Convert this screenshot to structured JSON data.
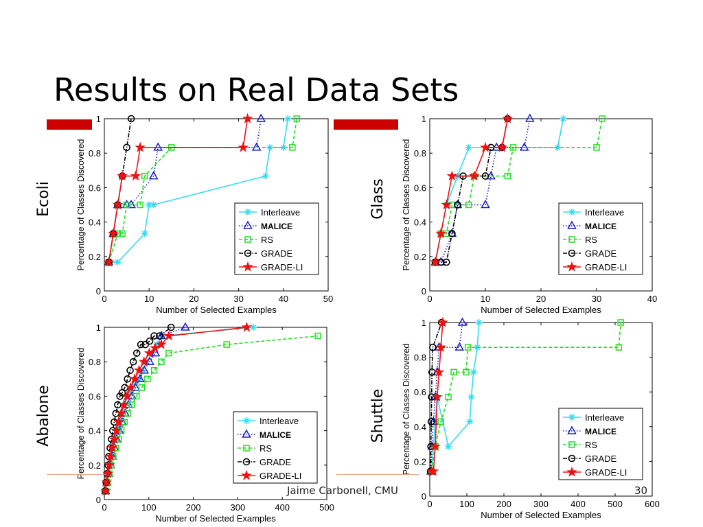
{
  "slide": {
    "title": "Results on Real Data Sets",
    "footer_author": "Jaime Carbonell, CMU",
    "page_number": "30",
    "accent_color": "#cc0000",
    "rule_color": "#e9a898"
  },
  "chart_data": [
    {
      "id": "ecoli",
      "type": "line",
      "dataset_label": "Ecoli",
      "xlabel": "Number of Selected Examples",
      "ylabel": "Percentage of Classes Discovered",
      "xlim": [
        0,
        50
      ],
      "ylim": [
        0,
        1
      ],
      "xticks": [
        0,
        10,
        20,
        30,
        40,
        50
      ],
      "yticks": [
        0,
        0.2,
        0.4,
        0.6,
        0.8,
        1
      ],
      "grid": false,
      "legend_position": "lower-right",
      "series": [
        {
          "name": "Interleave",
          "color": "#33ddee",
          "dash": "solid",
          "marker": "asterisk",
          "x": [
            1,
            3,
            9,
            10,
            11,
            36,
            37,
            40,
            41
          ],
          "y": [
            0.167,
            0.167,
            0.333,
            0.5,
            0.5,
            0.667,
            0.833,
            0.833,
            1.0
          ]
        },
        {
          "name": "MALICE",
          "color": "#1a1acc",
          "dash": "dotted",
          "marker": "triangle",
          "x": [
            1,
            2,
            3,
            5,
            6,
            11,
            12,
            34,
            35
          ],
          "y": [
            0.167,
            0.333,
            0.5,
            0.5,
            0.5,
            0.667,
            0.833,
            0.833,
            1.0
          ]
        },
        {
          "name": "RS",
          "color": "#22dd22",
          "dash": "dashed",
          "marker": "square",
          "x": [
            1,
            3,
            4,
            5,
            8,
            9,
            15,
            42,
            43
          ],
          "y": [
            0.167,
            0.333,
            0.333,
            0.5,
            0.5,
            0.667,
            0.833,
            0.833,
            1.0
          ]
        },
        {
          "name": "GRADE",
          "color": "#000000",
          "dash": "dashdot",
          "marker": "circle",
          "x": [
            1,
            2,
            3,
            4,
            5,
            6
          ],
          "y": [
            0.167,
            0.333,
            0.5,
            0.667,
            0.833,
            1.0
          ]
        },
        {
          "name": "GRADE-LI",
          "color": "#ee1111",
          "dash": "solid",
          "marker": "star",
          "x": [
            1,
            2,
            3,
            4,
            7,
            8,
            31,
            32
          ],
          "y": [
            0.167,
            0.333,
            0.5,
            0.667,
            0.667,
            0.833,
            0.833,
            1.0
          ]
        }
      ]
    },
    {
      "id": "glass",
      "type": "line",
      "dataset_label": "Glass",
      "xlabel": "Number of Selected Examples",
      "ylabel": "Percentage of Classes Discovered",
      "xlim": [
        0,
        40
      ],
      "ylim": [
        0,
        1
      ],
      "xticks": [
        0,
        10,
        20,
        30,
        40
      ],
      "yticks": [
        0,
        0.2,
        0.4,
        0.6,
        0.8,
        1
      ],
      "grid": false,
      "legend_position": "lower-right",
      "series": [
        {
          "name": "Interleave",
          "color": "#33ddee",
          "dash": "solid",
          "marker": "asterisk",
          "x": [
            1,
            2,
            3,
            5,
            7,
            23,
            24
          ],
          "y": [
            0.167,
            0.333,
            0.5,
            0.667,
            0.833,
            0.833,
            1.0
          ]
        },
        {
          "name": "MALICE",
          "color": "#1a1acc",
          "dash": "dotted",
          "marker": "triangle",
          "x": [
            1,
            2,
            4,
            5,
            10,
            11,
            12,
            17,
            18
          ],
          "y": [
            0.167,
            0.167,
            0.333,
            0.5,
            0.5,
            0.667,
            0.833,
            0.833,
            1.0
          ]
        },
        {
          "name": "RS",
          "color": "#22dd22",
          "dash": "dashed",
          "marker": "square",
          "x": [
            1,
            2,
            3,
            4,
            7,
            8,
            14,
            15,
            30,
            31
          ],
          "y": [
            0.167,
            0.333,
            0.333,
            0.5,
            0.5,
            0.667,
            0.667,
            0.833,
            0.833,
            1.0
          ]
        },
        {
          "name": "GRADE",
          "color": "#000000",
          "dash": "dashdot",
          "marker": "circle",
          "x": [
            1,
            2,
            3,
            4,
            5,
            6,
            10,
            11,
            13,
            14
          ],
          "y": [
            0.167,
            0.167,
            0.167,
            0.333,
            0.5,
            0.667,
            0.667,
            0.833,
            0.833,
            1.0
          ]
        },
        {
          "name": "GRADE-LI",
          "color": "#ee1111",
          "dash": "solid",
          "marker": "star",
          "x": [
            1,
            2,
            3,
            4,
            8,
            10,
            13,
            14
          ],
          "y": [
            0.167,
            0.333,
            0.5,
            0.667,
            0.667,
            0.833,
            0.833,
            1.0
          ]
        }
      ]
    },
    {
      "id": "abalone",
      "type": "line",
      "dataset_label": "Abalone",
      "xlabel": "Number of Selected Examples",
      "ylabel": "Percentage of Classes Discovered",
      "xlim": [
        0,
        500
      ],
      "ylim": [
        0,
        1
      ],
      "xticks": [
        0,
        100,
        200,
        300,
        400,
        500
      ],
      "yticks": [
        0,
        0.2,
        0.4,
        0.6,
        0.8,
        1
      ],
      "grid": false,
      "legend_position": "lower-right",
      "series": [
        {
          "name": "Interleave",
          "color": "#33ddee",
          "dash": "solid",
          "marker": "asterisk",
          "x": [
            3,
            6,
            9,
            12,
            16,
            20,
            25,
            30,
            35,
            40,
            46,
            52,
            58,
            64,
            70,
            78,
            86,
            96,
            106,
            118,
            130,
            335
          ],
          "y": [
            0.05,
            0.1,
            0.15,
            0.2,
            0.25,
            0.3,
            0.35,
            0.4,
            0.45,
            0.5,
            0.55,
            0.6,
            0.62,
            0.65,
            0.68,
            0.7,
            0.75,
            0.8,
            0.85,
            0.9,
            0.95,
            1.0
          ]
        },
        {
          "name": "MALICE",
          "color": "#1a1acc",
          "dash": "dotted",
          "marker": "triangle",
          "x": [
            3,
            6,
            10,
            14,
            18,
            23,
            28,
            34,
            40,
            47,
            54,
            62,
            70,
            80,
            90,
            102,
            115,
            128,
            182
          ],
          "y": [
            0.05,
            0.1,
            0.15,
            0.2,
            0.25,
            0.3,
            0.35,
            0.4,
            0.45,
            0.5,
            0.55,
            0.6,
            0.65,
            0.7,
            0.75,
            0.8,
            0.85,
            0.95,
            1.0
          ]
        },
        {
          "name": "RS",
          "color": "#22dd22",
          "dash": "dashed",
          "marker": "square",
          "x": [
            3,
            7,
            11,
            15,
            20,
            26,
            32,
            38,
            45,
            53,
            62,
            72,
            84,
            97,
            112,
            128,
            145,
            275,
            480
          ],
          "y": [
            0.05,
            0.1,
            0.15,
            0.2,
            0.25,
            0.3,
            0.35,
            0.4,
            0.45,
            0.5,
            0.55,
            0.6,
            0.65,
            0.7,
            0.75,
            0.8,
            0.85,
            0.9,
            0.95
          ]
        },
        {
          "name": "GRADE",
          "color": "#000000",
          "dash": "dashdot",
          "marker": "circle",
          "x": [
            2,
            4,
            6,
            8,
            10,
            13,
            16,
            19,
            22,
            26,
            30,
            35,
            40,
            46,
            52,
            58,
            65,
            73,
            82,
            92,
            102,
            112,
            124,
            150
          ],
          "y": [
            0.05,
            0.1,
            0.15,
            0.2,
            0.25,
            0.3,
            0.35,
            0.4,
            0.45,
            0.5,
            0.55,
            0.6,
            0.62,
            0.65,
            0.7,
            0.75,
            0.8,
            0.85,
            0.9,
            0.9,
            0.92,
            0.95,
            0.95,
            1.0
          ]
        },
        {
          "name": "GRADE-LI",
          "color": "#ee1111",
          "dash": "solid",
          "marker": "star",
          "x": [
            3,
            5,
            8,
            11,
            14,
            18,
            22,
            27,
            32,
            38,
            44,
            51,
            59,
            68,
            78,
            89,
            101,
            114,
            128,
            145,
            320
          ],
          "y": [
            0.05,
            0.1,
            0.15,
            0.2,
            0.25,
            0.3,
            0.35,
            0.4,
            0.45,
            0.5,
            0.55,
            0.6,
            0.65,
            0.7,
            0.75,
            0.8,
            0.85,
            0.88,
            0.9,
            0.95,
            1.0
          ]
        }
      ]
    },
    {
      "id": "shuttle",
      "type": "line",
      "dataset_label": "Shuttle",
      "xlabel": "Number of Selected Examples",
      "ylabel": "Percentage of Classes Discovered",
      "xlim": [
        0,
        600
      ],
      "ylim": [
        0,
        1
      ],
      "xticks": [
        0,
        100,
        200,
        300,
        400,
        500,
        600
      ],
      "yticks": [
        0,
        0.2,
        0.4,
        0.6,
        0.8,
        1
      ],
      "grid": false,
      "legend_position": "lower-right",
      "series": [
        {
          "name": "Interleave",
          "color": "#33ddee",
          "dash": "solid",
          "marker": "asterisk",
          "x": [
            5,
            10,
            15,
            20,
            50,
            108,
            112,
            118,
            128,
            133
          ],
          "y": [
            0.143,
            0.286,
            0.429,
            0.571,
            0.286,
            0.429,
            0.571,
            0.714,
            0.857,
            1.0
          ]
        },
        {
          "name": "MALICE",
          "color": "#1a1acc",
          "dash": "dotted",
          "marker": "triangle",
          "x": [
            3,
            6,
            10,
            15,
            20,
            25,
            80,
            88
          ],
          "y": [
            0.143,
            0.286,
            0.429,
            0.571,
            0.714,
            0.857,
            0.857,
            1.0
          ]
        },
        {
          "name": "RS",
          "color": "#22dd22",
          "dash": "dashed",
          "marker": "square",
          "x": [
            5,
            15,
            30,
            50,
            65,
            98,
            103,
            510,
            515
          ],
          "y": [
            0.143,
            0.286,
            0.429,
            0.571,
            0.714,
            0.714,
            0.857,
            0.857,
            1.0
          ]
        },
        {
          "name": "GRADE",
          "color": "#000000",
          "dash": "dashdot",
          "marker": "circle",
          "x": [
            2,
            3,
            4,
            5,
            6,
            8,
            32
          ],
          "y": [
            0.143,
            0.286,
            0.429,
            0.571,
            0.714,
            0.857,
            1.0
          ]
        },
        {
          "name": "GRADE-LI",
          "color": "#ee1111",
          "dash": "solid",
          "marker": "star",
          "x": [
            5,
            10,
            15,
            20,
            25,
            30,
            35
          ],
          "y": [
            0.143,
            0.143,
            0.286,
            0.571,
            0.714,
            0.857,
            1.0
          ]
        }
      ]
    }
  ]
}
